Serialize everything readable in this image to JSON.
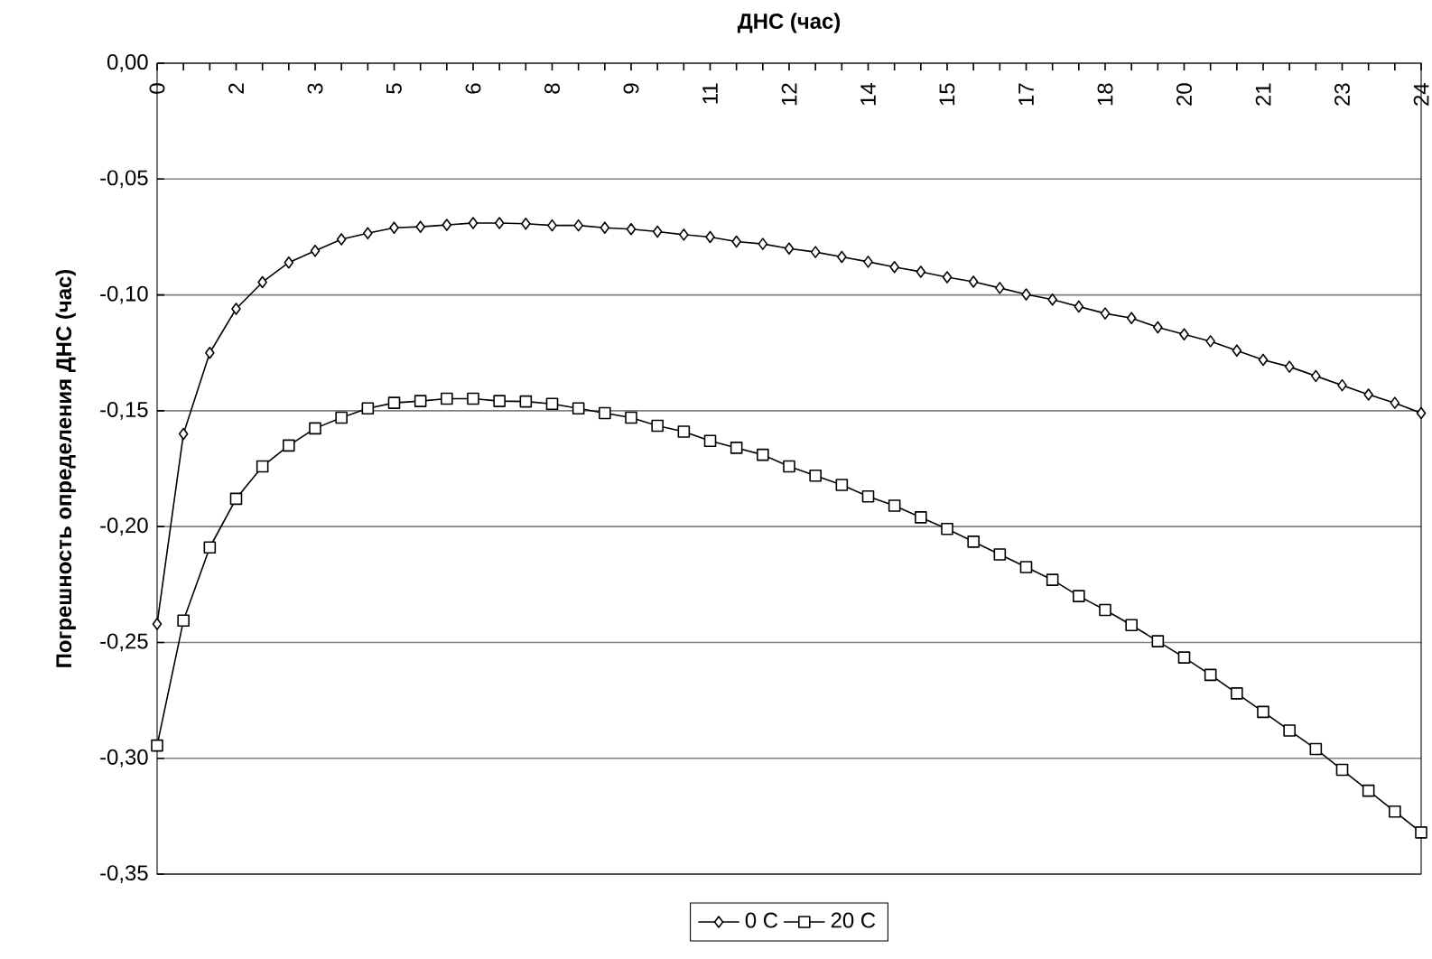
{
  "chart_data": {
    "type": "line",
    "xlabel": "ДНС (час)",
    "ylabel": "Погрешность определения ДНС (час)",
    "x": [
      0,
      0.5,
      1,
      1.5,
      2,
      2.5,
      3,
      3.5,
      4,
      4.5,
      5,
      5.5,
      6,
      6.5,
      7,
      7.5,
      8,
      8.5,
      9,
      9.5,
      10,
      10.5,
      11,
      11.5,
      12,
      12.5,
      13,
      13.5,
      14,
      14.5,
      15,
      15.5,
      16,
      16.5,
      17,
      17.5,
      18,
      18.5,
      19,
      19.5,
      20,
      20.5,
      21,
      21.5,
      22,
      22.5,
      23,
      23.5,
      24
    ],
    "series": [
      {
        "name": "0 C",
        "color": "#000000",
        "marker": "diamond",
        "values": [
          -0.242,
          -0.16,
          -0.125,
          -0.106,
          -0.0945,
          -0.086,
          -0.081,
          -0.076,
          -0.0734,
          -0.071,
          -0.0706,
          -0.0698,
          -0.069,
          -0.069,
          -0.0693,
          -0.07,
          -0.07,
          -0.071,
          -0.0716,
          -0.0727,
          -0.074,
          -0.075,
          -0.077,
          -0.078,
          -0.08,
          -0.0815,
          -0.0836,
          -0.0857,
          -0.088,
          -0.09,
          -0.0924,
          -0.0943,
          -0.097,
          -0.0998,
          -0.102,
          -0.105,
          -0.108,
          -0.11,
          -0.114,
          -0.117,
          -0.12,
          -0.124,
          -0.128,
          -0.131,
          -0.135,
          -0.139,
          -0.143,
          -0.1466,
          -0.151
        ]
      },
      {
        "name": "20 C",
        "color": "#000000",
        "marker": "square",
        "values": [
          -0.2945,
          -0.2406,
          -0.209,
          -0.188,
          -0.174,
          -0.165,
          -0.1576,
          -0.153,
          -0.149,
          -0.1466,
          -0.1458,
          -0.1448,
          -0.1448,
          -0.1458,
          -0.146,
          -0.147,
          -0.149,
          -0.151,
          -0.153,
          -0.1565,
          -0.159,
          -0.163,
          -0.166,
          -0.169,
          -0.174,
          -0.178,
          -0.182,
          -0.187,
          -0.191,
          -0.196,
          -0.201,
          -0.2065,
          -0.212,
          -0.2175,
          -0.223,
          -0.23,
          -0.236,
          -0.2425,
          -0.2495,
          -0.2565,
          -0.264,
          -0.272,
          -0.28,
          -0.288,
          -0.296,
          -0.305,
          -0.314,
          -0.323,
          -0.332
        ]
      }
    ],
    "xlim": [
      0,
      24
    ],
    "xticks": [
      {
        "value": 0,
        "label": "0"
      },
      {
        "value": 0.5,
        "label": null
      },
      {
        "value": 1,
        "label": null
      },
      {
        "value": 1.5,
        "label": "2"
      },
      {
        "value": 2,
        "label": null
      },
      {
        "value": 2.5,
        "label": null
      },
      {
        "value": 3,
        "label": "3"
      },
      {
        "value": 3.5,
        "label": null
      },
      {
        "value": 4,
        "label": null
      },
      {
        "value": 4.5,
        "label": "5"
      },
      {
        "value": 5,
        "label": null
      },
      {
        "value": 5.5,
        "label": null
      },
      {
        "value": 6,
        "label": "6"
      },
      {
        "value": 6.5,
        "label": null
      },
      {
        "value": 7,
        "label": null
      },
      {
        "value": 7.5,
        "label": "8"
      },
      {
        "value": 8,
        "label": null
      },
      {
        "value": 8.5,
        "label": null
      },
      {
        "value": 9,
        "label": "9"
      },
      {
        "value": 9.5,
        "label": null
      },
      {
        "value": 10,
        "label": null
      },
      {
        "value": 10.5,
        "label": "11"
      },
      {
        "value": 11,
        "label": null
      },
      {
        "value": 11.5,
        "label": null
      },
      {
        "value": 12,
        "label": "12"
      },
      {
        "value": 12.5,
        "label": null
      },
      {
        "value": 13,
        "label": null
      },
      {
        "value": 13.5,
        "label": "14"
      },
      {
        "value": 14,
        "label": null
      },
      {
        "value": 14.5,
        "label": null
      },
      {
        "value": 15,
        "label": "15"
      },
      {
        "value": 15.5,
        "label": null
      },
      {
        "value": 16,
        "label": null
      },
      {
        "value": 16.5,
        "label": "17"
      },
      {
        "value": 17,
        "label": null
      },
      {
        "value": 17.5,
        "label": null
      },
      {
        "value": 18,
        "label": "18"
      },
      {
        "value": 18.5,
        "label": null
      },
      {
        "value": 19,
        "label": null
      },
      {
        "value": 19.5,
        "label": "20"
      },
      {
        "value": 20,
        "label": null
      },
      {
        "value": 20.5,
        "label": null
      },
      {
        "value": 21,
        "label": "21"
      },
      {
        "value": 21.5,
        "label": null
      },
      {
        "value": 22,
        "label": null
      },
      {
        "value": 22.5,
        "label": "23"
      },
      {
        "value": 23,
        "label": null
      },
      {
        "value": 23.5,
        "label": null
      },
      {
        "value": 24,
        "label": "24"
      }
    ],
    "ylim": [
      -0.35,
      0
    ],
    "yticks": [
      {
        "value": 0,
        "label": "0,00"
      },
      {
        "value": -0.05,
        "label": "-0,05"
      },
      {
        "value": -0.1,
        "label": "-0,10"
      },
      {
        "value": -0.15,
        "label": "-0,15"
      },
      {
        "value": -0.2,
        "label": "-0,20"
      },
      {
        "value": -0.25,
        "label": "-0,25"
      },
      {
        "value": -0.3,
        "label": "-0,30"
      },
      {
        "value": -0.35,
        "label": "-0,35"
      }
    ],
    "grid": "y",
    "legend": "bottom",
    "line_style": "solid"
  }
}
